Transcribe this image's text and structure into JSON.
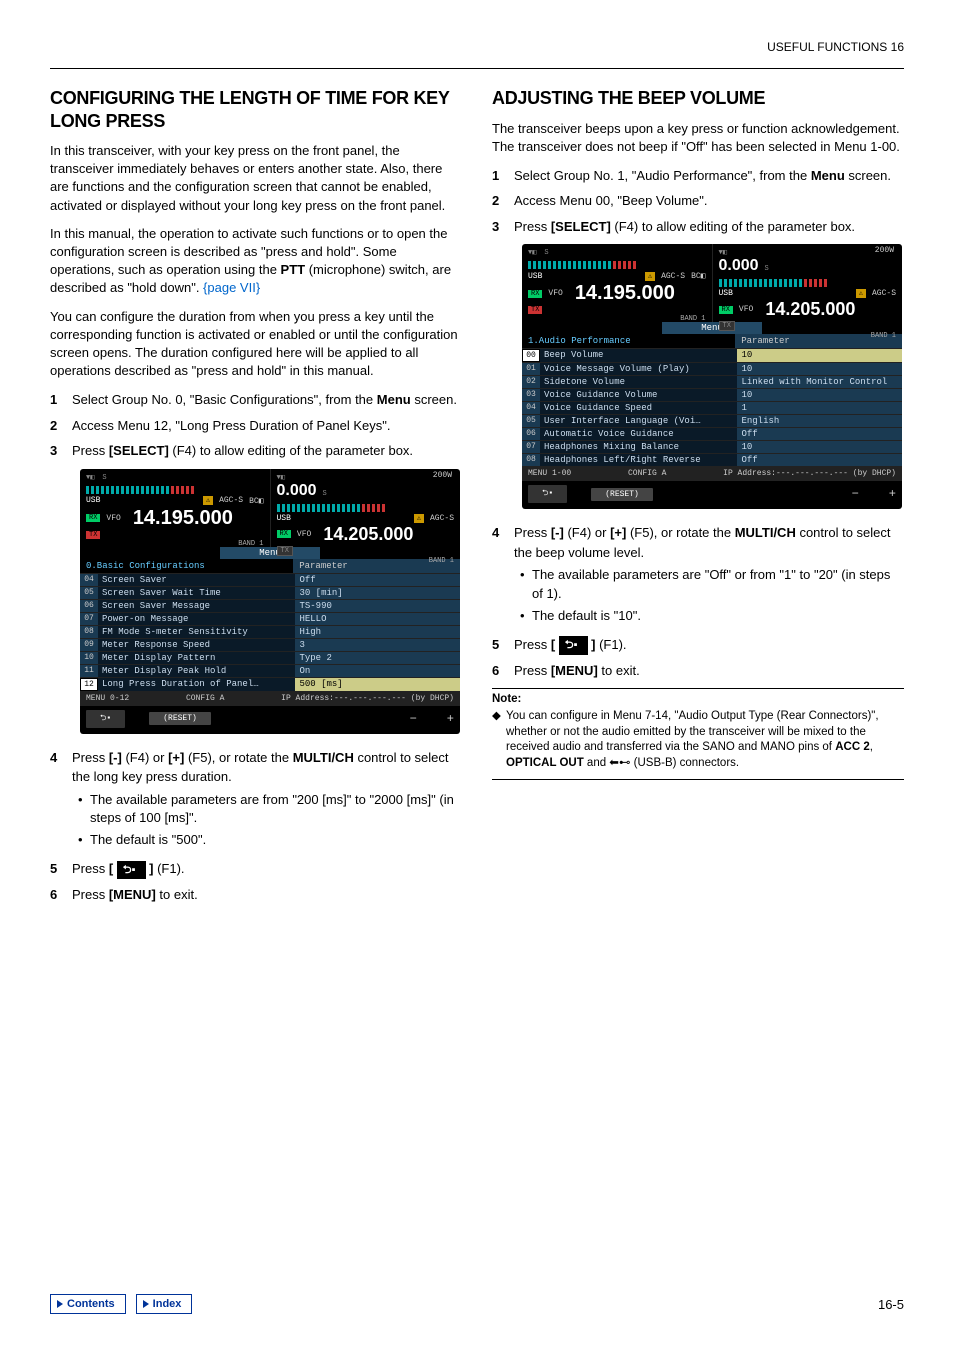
{
  "header": {
    "chapter": "USEFUL FUNCTIONS 16"
  },
  "left": {
    "title": "CONFIGURING THE LENGTH OF TIME FOR KEY LONG PRESS",
    "p1": "In this transceiver, with your key press on the front panel, the transceiver immediately behaves or enters another state. Also, there are functions and the configuration screen that cannot be enabled, activated or displayed without your long key press on the front panel.",
    "p2a": "In this manual, the operation to activate such functions or to open the configuration screen is described as \"press and hold\". Some operations, such as operation using the ",
    "p2b_bold": "PTT",
    "p2c": " (microphone) switch, are described as \"hold down\". ",
    "p2_link": "{page VII}",
    "p3": "You can configure the duration from when you press a key until the corresponding function is activated or enabled or until the configuration screen opens. The duration configured here will be applied to all operations described as \"press and hold\" in this manual.",
    "steps1": [
      {
        "n": "1",
        "html": "Select Group No. 0, \"Basic Configurations\", from the <b>Menu</b> screen."
      },
      {
        "n": "2",
        "html": "Access Menu 12, \"Long Press Duration of Panel Keys\"."
      },
      {
        "n": "3",
        "html": "Press <b>[SELECT]</b> (F4) to allow editing of the parameter box."
      }
    ],
    "steps2": [
      {
        "n": "4",
        "html": "Press <b>[-]</b> (F4) or <b>[+]</b> (F5), or rotate the <b>MULTI/CH</b> control to select the long key press duration.",
        "bullets": [
          "The available parameters are from \"200 [ms]\" to \"2000 [ms]\" (in steps of 100 [ms]\".",
          "The default is \"500\"."
        ]
      },
      {
        "n": "5",
        "html": "Press <b>[ <span class=\"f1-btn\">⮌▪</span> ]</b> (F1)."
      },
      {
        "n": "6",
        "html": "Press <b>[MENU]</b> to exit."
      }
    ]
  },
  "right": {
    "title": "ADJUSTING THE BEEP VOLUME",
    "p1": "The transceiver beeps upon a key press or function acknowledgement. The transceiver does not beep if \"Off\" has been selected in Menu 1-00.",
    "steps1": [
      {
        "n": "1",
        "html": "Select Group No. 1, \"Audio Performance\", from the <b>Menu</b> screen."
      },
      {
        "n": "2",
        "html": "Access Menu 00, \"Beep Volume\"."
      },
      {
        "n": "3",
        "html": "Press <b>[SELECT]</b> (F4) to allow editing of the parameter box."
      }
    ],
    "steps2": [
      {
        "n": "4",
        "html": "Press <b>[-]</b> (F4) or <b>[+]</b> (F5), or rotate the <b>MULTI/CH</b> control to select the beep volume level.",
        "bullets": [
          "The available parameters are \"Off\" or from \"1\" to \"20\" (in steps of 1).",
          "The default is \"10\"."
        ]
      },
      {
        "n": "5",
        "html": "Press <b>[ <span class=\"f1-btn\">⮌▪</span> ]</b> (F1)."
      },
      {
        "n": "6",
        "html": "Press <b>[MENU]</b> to exit."
      }
    ],
    "note_label": "Note:",
    "note_text": "You can configure in Menu 7-14, \"Audio Output Type (Rear Connectors)\", whether or not the audio emitted by the transceiver will be mixed to the received audio and transferred via the SANO and MANO pins of <b>ACC 2</b>, <b>OPTICAL OUT</b> and ⬅⊷ (USB-B) connectors."
  },
  "screenA": {
    "power": "200W",
    "left_freq": "14.195.000",
    "right_freq_top": "0.000",
    "right_freq": "14.205.000",
    "usb": "USB",
    "agc": "AGC-S",
    "vfo": "VFO",
    "bc": "BC",
    "band": "BAND 1",
    "menu_tab": "Menu",
    "group": "0.Basic Configurations",
    "param_label": "Parameter",
    "rows": [
      {
        "n": "04",
        "label": "Screen Saver",
        "val": "Off"
      },
      {
        "n": "05",
        "label": "Screen Saver Wait Time",
        "val": "30 [min]"
      },
      {
        "n": "06",
        "label": "Screen Saver Message",
        "val": "TS-990"
      },
      {
        "n": "07",
        "label": "Power-on Message",
        "val": "HELLO"
      },
      {
        "n": "08",
        "label": "FM Mode S-meter Sensitivity",
        "val": "High"
      },
      {
        "n": "09",
        "label": "Meter Response Speed",
        "val": "3"
      },
      {
        "n": "10",
        "label": "Meter Display Pattern",
        "val": "Type 2"
      },
      {
        "n": "11",
        "label": "Meter Display Peak Hold",
        "val": "On"
      },
      {
        "n": "12",
        "label": "Long Press Duration of Panel…",
        "val": "500 [ms]",
        "sel": true
      }
    ],
    "footer_menu": "MENU 0-12",
    "footer_config": "CONFIG A",
    "footer_ip": "IP Address:---.---.---.--- (by DHCP)",
    "reset": "(RESET)"
  },
  "screenB": {
    "power": "200W",
    "left_freq": "14.195.000",
    "right_freq_top": "0.000",
    "right_freq": "14.205.000",
    "usb": "USB",
    "agc": "AGC-S",
    "vfo": "VFO",
    "bc": "BC",
    "band": "BAND 1",
    "menu_tab": "Menu",
    "group": "1.Audio Performance",
    "param_label": "Parameter",
    "rows": [
      {
        "n": "00",
        "label": "Beep Volume",
        "val": "10",
        "sel": true
      },
      {
        "n": "01",
        "label": "Voice Message Volume (Play)",
        "val": "10"
      },
      {
        "n": "02",
        "label": "Sidetone Volume",
        "val": "Linked with Monitor Control"
      },
      {
        "n": "03",
        "label": "Voice Guidance Volume",
        "val": "10"
      },
      {
        "n": "04",
        "label": "Voice Guidance Speed",
        "val": "1"
      },
      {
        "n": "05",
        "label": "User Interface Language (Voi…",
        "val": "English"
      },
      {
        "n": "06",
        "label": "Automatic Voice Guidance",
        "val": "Off"
      },
      {
        "n": "07",
        "label": "Headphones Mixing Balance",
        "val": "10"
      },
      {
        "n": "08",
        "label": "Headphones Left/Right Reverse",
        "val": "Off"
      }
    ],
    "footer_menu": "MENU 1-00",
    "footer_config": "CONFIG A",
    "footer_ip": "IP Address:---.---.---.--- (by DHCP)",
    "reset": "(RESET)"
  },
  "footer": {
    "contents": "Contents",
    "index": "Index",
    "page": "16-5"
  }
}
